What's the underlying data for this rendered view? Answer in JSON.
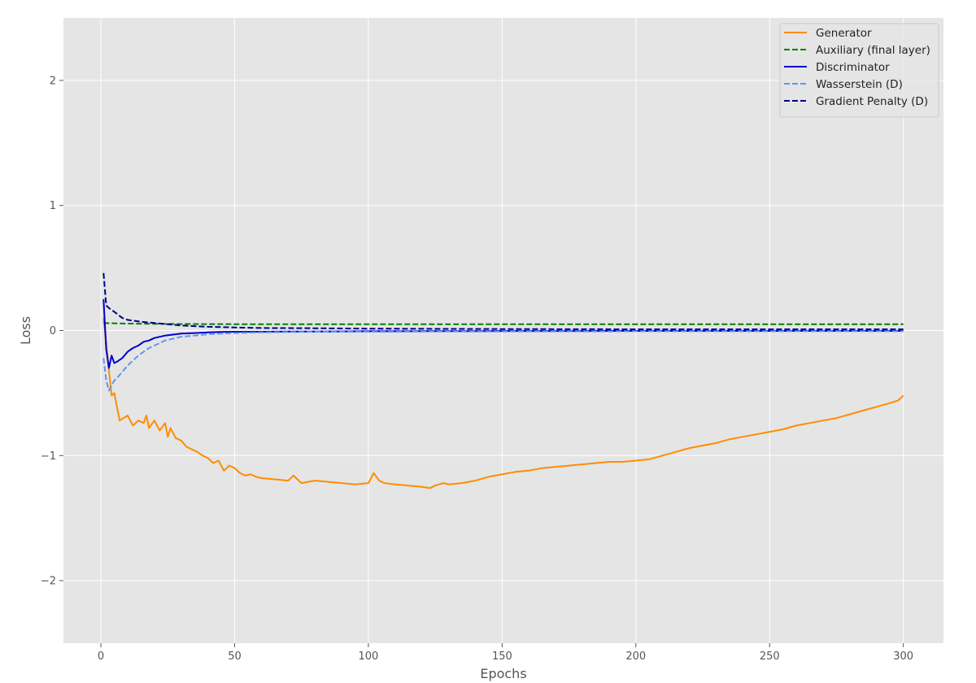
{
  "chart_data": {
    "type": "line",
    "xlabel": "Epochs",
    "ylabel": "Loss",
    "xlim": [
      -14,
      315
    ],
    "ylim": [
      -2.5,
      2.5
    ],
    "xticks": [
      0,
      50,
      100,
      150,
      200,
      250,
      300
    ],
    "yticks": [
      -2,
      -1,
      0,
      1,
      2
    ],
    "grid": true,
    "legend_position": "top-right",
    "series": [
      {
        "name": "Generator",
        "color": "#ff8c00",
        "style": "solid",
        "x": [
          1,
          2,
          3,
          4,
          5,
          7,
          10,
          12,
          14,
          16,
          17,
          18,
          20,
          22,
          24,
          25,
          26,
          28,
          30,
          32,
          34,
          36,
          38,
          40,
          42,
          44,
          46,
          48,
          50,
          52,
          54,
          56,
          58,
          60,
          65,
          70,
          72,
          75,
          80,
          85,
          90,
          95,
          100,
          102,
          104,
          106,
          110,
          115,
          120,
          123,
          125,
          128,
          130,
          135,
          140,
          145,
          150,
          155,
          160,
          165,
          170,
          175,
          180,
          185,
          190,
          195,
          200,
          205,
          210,
          215,
          220,
          225,
          230,
          235,
          240,
          245,
          250,
          255,
          260,
          265,
          270,
          275,
          280,
          285,
          290,
          295,
          298,
          300
        ],
        "y": [
          0.1,
          -0.1,
          -0.32,
          -0.52,
          -0.5,
          -0.72,
          -0.68,
          -0.76,
          -0.72,
          -0.74,
          -0.68,
          -0.78,
          -0.72,
          -0.8,
          -0.74,
          -0.85,
          -0.78,
          -0.86,
          -0.88,
          -0.93,
          -0.95,
          -0.97,
          -1.0,
          -1.02,
          -1.06,
          -1.04,
          -1.12,
          -1.08,
          -1.1,
          -1.14,
          -1.16,
          -1.15,
          -1.17,
          -1.18,
          -1.19,
          -1.2,
          -1.16,
          -1.22,
          -1.2,
          -1.21,
          -1.22,
          -1.23,
          -1.22,
          -1.14,
          -1.2,
          -1.22,
          -1.23,
          -1.24,
          -1.25,
          -1.26,
          -1.24,
          -1.22,
          -1.23,
          -1.22,
          -1.2,
          -1.17,
          -1.15,
          -1.13,
          -1.12,
          -1.1,
          -1.09,
          -1.08,
          -1.07,
          -1.06,
          -1.05,
          -1.05,
          -1.04,
          -1.03,
          -1.0,
          -0.97,
          -0.94,
          -0.92,
          -0.9,
          -0.87,
          -0.85,
          -0.83,
          -0.81,
          -0.79,
          -0.76,
          -0.74,
          -0.72,
          -0.7,
          -0.67,
          -0.64,
          -0.61,
          -0.58,
          -0.56,
          -0.52
        ]
      },
      {
        "name": "Auxiliary (final layer)",
        "color": "#008000",
        "style": "dashed",
        "x": [
          1,
          10,
          30,
          60,
          100,
          150,
          200,
          250,
          300
        ],
        "y": [
          0.06,
          0.055,
          0.052,
          0.05,
          0.05,
          0.05,
          0.05,
          0.05,
          0.05
        ]
      },
      {
        "name": "Discriminator",
        "color": "#0000cd",
        "style": "solid",
        "x": [
          1,
          2,
          3,
          4,
          5,
          6,
          8,
          10,
          12,
          14,
          16,
          18,
          20,
          22,
          24,
          26,
          28,
          30,
          35,
          40,
          45,
          50,
          60,
          70,
          80,
          90,
          100,
          110,
          120,
          130,
          140,
          150,
          160,
          170,
          180,
          190,
          200,
          210,
          220,
          230,
          240,
          250,
          260,
          270,
          280,
          290,
          300
        ],
        "y": [
          0.25,
          -0.15,
          -0.3,
          -0.2,
          -0.26,
          -0.25,
          -0.22,
          -0.17,
          -0.14,
          -0.12,
          -0.09,
          -0.08,
          -0.06,
          -0.05,
          -0.04,
          -0.035,
          -0.03,
          -0.025,
          -0.02,
          -0.015,
          -0.012,
          -0.01,
          -0.01,
          -0.008,
          -0.008,
          -0.007,
          -0.006,
          -0.006,
          -0.005,
          -0.005,
          -0.005,
          -0.004,
          -0.004,
          -0.004,
          -0.004,
          -0.003,
          -0.003,
          -0.003,
          -0.003,
          -0.003,
          -0.003,
          -0.003,
          -0.003,
          -0.003,
          -0.003,
          -0.003,
          -0.003
        ]
      },
      {
        "name": "Wasserstein (D)",
        "color": "#6495ed",
        "style": "dashed",
        "x": [
          1,
          2,
          3,
          4,
          5,
          6,
          8,
          10,
          12,
          14,
          16,
          18,
          20,
          22,
          24,
          26,
          28,
          30,
          35,
          40,
          45,
          50,
          60,
          70,
          80,
          90,
          100,
          110,
          120,
          130,
          140,
          150,
          160,
          170,
          180,
          190,
          200,
          210,
          220,
          230,
          240,
          250,
          260,
          270,
          280,
          290,
          300
        ],
        "y": [
          -0.22,
          -0.4,
          -0.48,
          -0.44,
          -0.4,
          -0.38,
          -0.33,
          -0.28,
          -0.24,
          -0.2,
          -0.17,
          -0.14,
          -0.12,
          -0.1,
          -0.08,
          -0.07,
          -0.06,
          -0.05,
          -0.04,
          -0.03,
          -0.025,
          -0.02,
          -0.015,
          -0.012,
          -0.01,
          -0.01,
          -0.01,
          -0.01,
          -0.008,
          -0.008,
          -0.008,
          -0.008,
          -0.007,
          -0.007,
          -0.007,
          -0.007,
          -0.006,
          -0.006,
          -0.006,
          -0.006,
          -0.006,
          -0.006,
          -0.006,
          -0.006,
          -0.006,
          -0.006,
          -0.006
        ]
      },
      {
        "name": "Gradient Penalty (D)",
        "color": "#00008b",
        "style": "dashed",
        "x": [
          1,
          2,
          3,
          5,
          8,
          10,
          15,
          20,
          25,
          30,
          40,
          50,
          60,
          80,
          100,
          150,
          200,
          250,
          300
        ],
        "y": [
          0.46,
          0.2,
          0.18,
          0.15,
          0.1,
          0.085,
          0.07,
          0.06,
          0.05,
          0.04,
          0.03,
          0.025,
          0.02,
          0.018,
          0.015,
          0.012,
          0.01,
          0.01,
          0.01
        ]
      }
    ]
  }
}
